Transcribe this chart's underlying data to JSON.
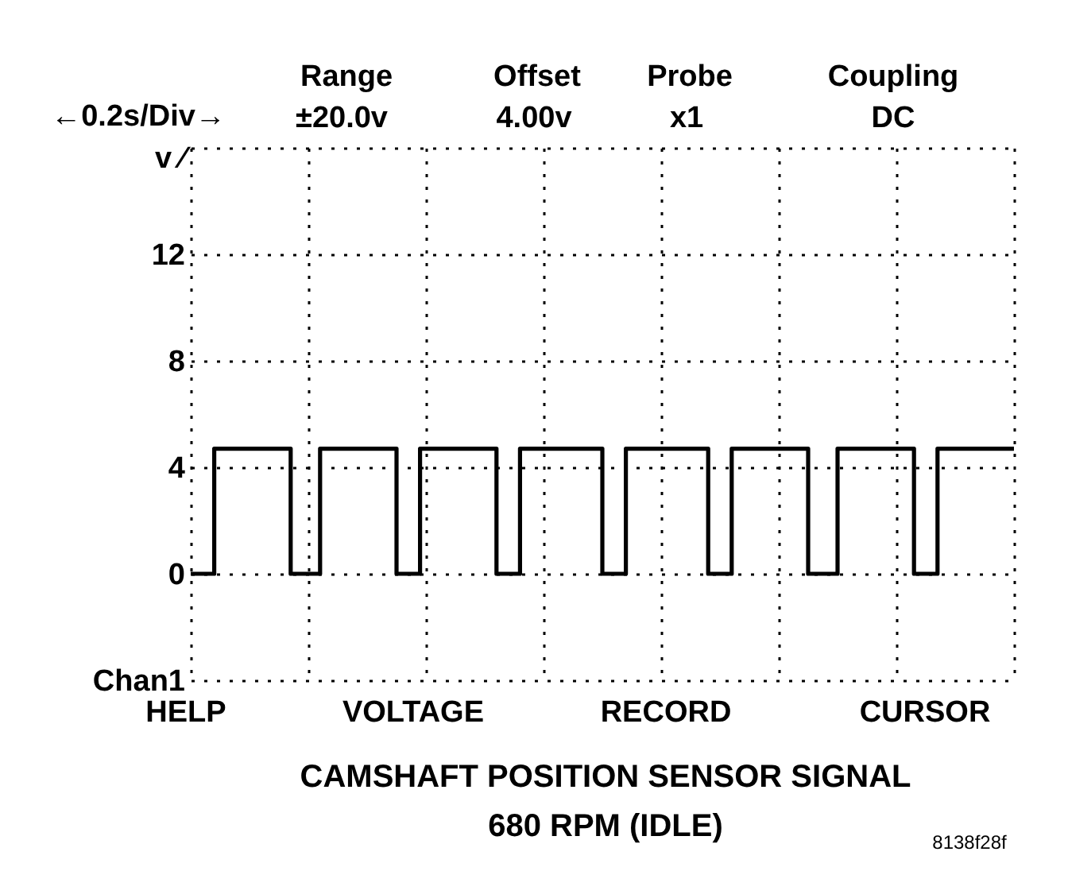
{
  "chart_data": {
    "type": "step",
    "title": "CAMSHAFT POSITION SENSOR SIGNAL",
    "subtitle": "680 RPM (IDLE)",
    "ylabel": "v ⁄",
    "categories": [
      null,
      null,
      null,
      null,
      null,
      null,
      null,
      null,
      null,
      null,
      null,
      null,
      null,
      null,
      null,
      null,
      null,
      null,
      null,
      null,
      null,
      null,
      null,
      null,
      null,
      null,
      null,
      null,
      null,
      null,
      null,
      null,
      null,
      null,
      null,
      null,
      null,
      null,
      null,
      null,
      null,
      null,
      null,
      null,
      null,
      null,
      null,
      null,
      null,
      null,
      null,
      null,
      null,
      null,
      null,
      null,
      null,
      null,
      null,
      null,
      null,
      null,
      null,
      null,
      null,
      null,
      null,
      null,
      null,
      null,
      null,
      null,
      null,
      null,
      null,
      null,
      null,
      null,
      null,
      null,
      null,
      null,
      null,
      null,
      null,
      null,
      null,
      null,
      null,
      null,
      null,
      null,
      null,
      null,
      null,
      null,
      null,
      null,
      null,
      null,
      null,
      null,
      null,
      null,
      null,
      null,
      null,
      null,
      null,
      null,
      null,
      null,
      null,
      null,
      null,
      null,
      null,
      null,
      null,
      null,
      null,
      null,
      null,
      null,
      null,
      null,
      null,
      null,
      null,
      null,
      null,
      null,
      null,
      null,
      null,
      null,
      null,
      null,
      null,
      null,
      null
    ],
    "series": [
      {
        "color": "#000000",
        "values": [
          0,
          0,
          0,
          0,
          4.7,
          4.7,
          4.7,
          4.7,
          4.7,
          4.7,
          4.7,
          4.7,
          4.7,
          4.7,
          4.7,
          4.7,
          4.7,
          0,
          0,
          0,
          0,
          0,
          4.7,
          4.7,
          4.7,
          4.7,
          4.7,
          4.7,
          4.7,
          4.7,
          4.7,
          4.7,
          4.7,
          4.7,
          4.7,
          0,
          0,
          0,
          0,
          4.7,
          4.7,
          4.7,
          4.7,
          4.7,
          4.7,
          4.7,
          4.7,
          4.7,
          4.7,
          4.7,
          4.7,
          4.7,
          0,
          0,
          0,
          0,
          4.7,
          4.7,
          4.7,
          4.7,
          4.7,
          4.7,
          4.7,
          4.7,
          4.7,
          4.7,
          4.7,
          4.7,
          4.7,
          4.7,
          0,
          0,
          0,
          0,
          4.7,
          4.7,
          4.7,
          4.7,
          4.7,
          4.7,
          4.7,
          4.7,
          4.7,
          4.7,
          4.7,
          4.7,
          4.7,
          4.7,
          0,
          0,
          0,
          0,
          4.7,
          4.7,
          4.7,
          4.7,
          4.7,
          4.7,
          4.7,
          4.7,
          4.7,
          4.7,
          4.7,
          4.7,
          4.7,
          0,
          0,
          0,
          0,
          0,
          4.7,
          4.7,
          4.7,
          4.7,
          4.7,
          4.7,
          4.7,
          4.7,
          4.7,
          4.7,
          4.7,
          4.7,
          4.7,
          0,
          0,
          0,
          0,
          4.7,
          4.7,
          4.7,
          4.7,
          4.7,
          4.7,
          4.7,
          4.7,
          4.7,
          4.7,
          4.7,
          4.7,
          4.7,
          4.7
        ]
      }
    ],
    "ylim": [
      -4,
      16
    ],
    "yticks": [
      {
        "value": -4,
        "label": "Chan1"
      },
      0,
      4,
      8,
      12,
      {
        "value": 16,
        "label": null
      }
    ],
    "grid": true,
    "line_style": "solid",
    "marker": "none",
    "annotations": [
      "←0.2s/Div→",
      "Range",
      "±20.0v",
      "Offset",
      "4.00v",
      "Probe",
      "x1",
      "Coupling",
      "DC",
      "HELP",
      "VOLTAGE",
      "RECORD",
      "CURSOR",
      "8138f28f"
    ]
  }
}
